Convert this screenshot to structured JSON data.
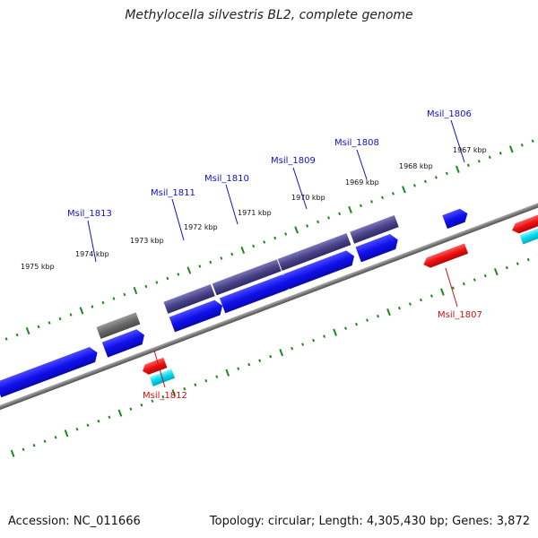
{
  "title": "Methylocella silvestris BL2, complete genome",
  "footer": {
    "accession": "Accession: NC_011666",
    "summary": "Topology: circular; Length: 4,305,430 bp; Genes: 3,872"
  },
  "colors": {
    "forward_cds": "#1010ee",
    "reverse_cds": "#ee1010",
    "rna": "#00d8ee",
    "pseudo": "#6a6a6a",
    "gene": "#4a4488",
    "backbone": "#7a7a7a",
    "tick": "#1a8a1a",
    "label_forward": "#1010cc",
    "label_reverse": "#cc1010"
  },
  "ticks": [
    {
      "label": "1967 kbp"
    },
    {
      "label": "1968 kbp"
    },
    {
      "label": "1969 kbp"
    },
    {
      "label": "1970 kbp"
    },
    {
      "label": "1971 kbp"
    },
    {
      "label": "1972 kbp"
    },
    {
      "label": "1973 kbp"
    },
    {
      "label": "1974 kbp"
    },
    {
      "label": "1975 kbp"
    }
  ],
  "gene_labels": [
    {
      "text": "Msil_1806",
      "strand": "forward"
    },
    {
      "text": "Msil_1807",
      "strand": "reverse"
    },
    {
      "text": "Msil_1808",
      "strand": "forward"
    },
    {
      "text": "Msil_1809",
      "strand": "forward"
    },
    {
      "text": "Msil_1810",
      "strand": "forward"
    },
    {
      "text": "Msil_1811",
      "strand": "forward"
    },
    {
      "text": "Msil_1812",
      "strand": "reverse"
    },
    {
      "text": "Msil_1813",
      "strand": "forward"
    }
  ]
}
